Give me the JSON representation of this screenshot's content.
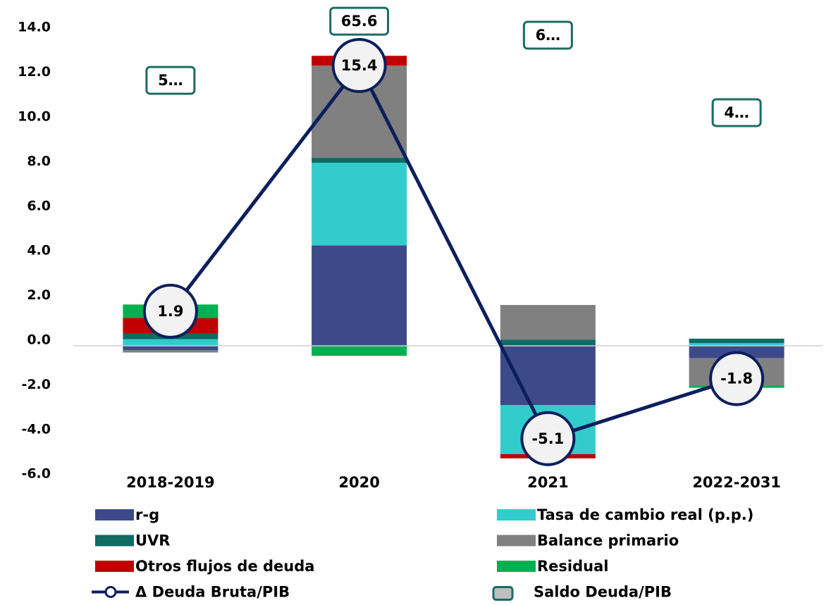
{
  "chart_data": {
    "type": "bar",
    "stacked": true,
    "categories": [
      "2018-2019",
      "2020",
      "2021",
      "2022-2031"
    ],
    "ylim": [
      -6,
      14
    ],
    "yticks": [
      {
        "value": -6,
        "label": "-6.0"
      },
      {
        "value": -4,
        "label": "-4.0"
      },
      {
        "value": -2,
        "label": "-2.0"
      },
      {
        "value": 0,
        "label": "0.0"
      },
      {
        "value": 2,
        "label": "2.0"
      },
      {
        "value": 4,
        "label": "4.0"
      },
      {
        "value": 6,
        "label": "6.0"
      },
      {
        "value": 8,
        "label": "8.0"
      },
      {
        "value": 10,
        "label": "10.0"
      },
      {
        "value": 12,
        "label": "12.0"
      },
      {
        "value": 14,
        "label": "14.0"
      }
    ],
    "y2lim": [
      -7.36,
      17.17
    ],
    "y3lim": [
      -52.2,
      62.5
    ],
    "grid": false,
    "legend": "bottom",
    "series": [
      {
        "name": "r-g",
        "color": "#3d4a8a",
        "values": [
          -0.2,
          4.5,
          -2.65,
          -0.55
        ]
      },
      {
        "name": "Tasa de cambio real (p.p.)",
        "color": "#33cccc",
        "values": [
          0.3,
          3.7,
          -2.2,
          0.12
        ]
      },
      {
        "name": "UVR",
        "color": "#0d6b63",
        "values": [
          0.25,
          0.22,
          0.28,
          0.2
        ]
      },
      {
        "name": "Balance primario",
        "color": "#808080",
        "values": [
          -0.1,
          4.13,
          1.55,
          -1.23
        ]
      },
      {
        "name": "Otros flujos de deuda",
        "color": "#c00000",
        "values": [
          0.7,
          0.44,
          -0.19,
          0
        ]
      },
      {
        "name": "Residual",
        "color": "#00b050",
        "values": [
          0.6,
          -0.45,
          0,
          -0.1
        ]
      },
      {
        "name": "Δ Deuda Bruta/PIB",
        "type": "line",
        "axis": "y2",
        "color": "#0c1f5c",
        "values": [
          1.9,
          15.4,
          -5.1,
          -1.8
        ]
      },
      {
        "name": "Saldo Deuda/PIB",
        "type": "scatter",
        "axis": "y3",
        "color": "#1d6b63",
        "values": [
          50.4,
          65.6,
          62.0,
          42.1
        ],
        "value_labels": [
          "5…",
          "65.6",
          "6…",
          "4…"
        ]
      }
    ]
  }
}
